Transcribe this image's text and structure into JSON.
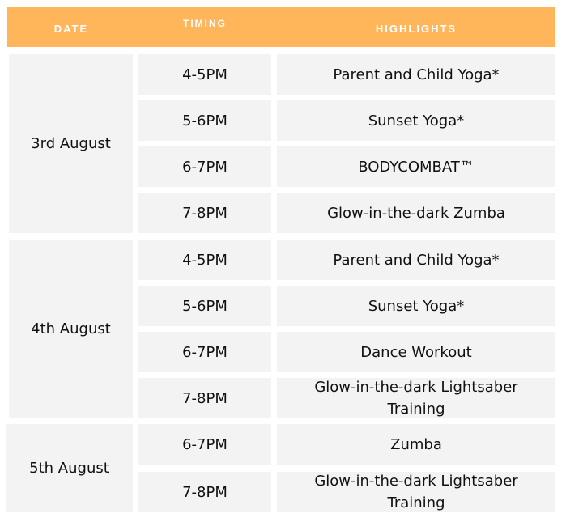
{
  "colors": {
    "header_bg": "#FFB55A",
    "header_text": "#ffffff",
    "cell_bg": "#f3f3f3"
  },
  "header": {
    "date": "DATE",
    "timing": "TIMING",
    "highlights": "HIGHLIGHTS"
  },
  "groups": [
    {
      "date": "3rd August",
      "rows": [
        {
          "timing": "4-5PM",
          "highlight": "Parent and Child Yoga*"
        },
        {
          "timing": "5-6PM",
          "highlight": "Sunset Yoga*"
        },
        {
          "timing": "6-7PM",
          "highlight": "BODYCOMBAT™"
        },
        {
          "timing": "7-8PM",
          "highlight": "Glow-in-the-dark Zumba"
        }
      ]
    },
    {
      "date": "4th August",
      "rows": [
        {
          "timing": "4-5PM",
          "highlight": "Parent and Child Yoga*"
        },
        {
          "timing": "5-6PM",
          "highlight": "Sunset Yoga*"
        },
        {
          "timing": "6-7PM",
          "highlight": "Dance Workout"
        },
        {
          "timing": "7-8PM",
          "highlight": "Glow-in-the-dark Lightsaber Training"
        }
      ]
    },
    {
      "date": "5th August",
      "rows": [
        {
          "timing": "6-7PM",
          "highlight": "Zumba"
        },
        {
          "timing": "7-8PM",
          "highlight": "Glow-in-the-dark Lightsaber Training"
        }
      ]
    }
  ]
}
